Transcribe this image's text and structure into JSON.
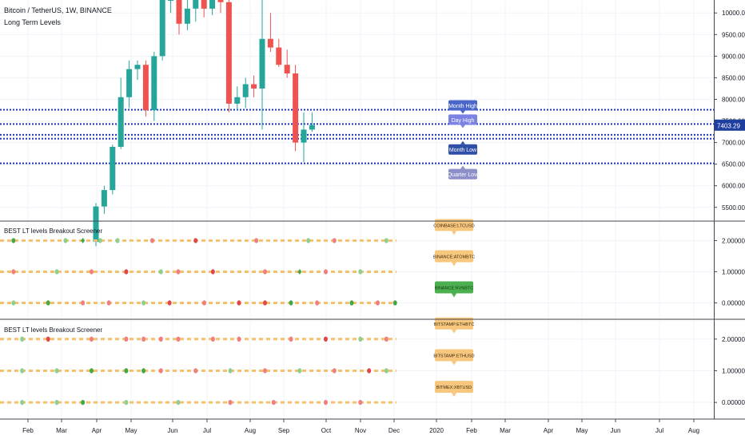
{
  "header": {
    "symbol_line": "Bitcoin / TetherUS, 1W, BINANCE",
    "indicator_name": "Long Term Levels"
  },
  "colors": {
    "bull": "#26a69a",
    "bear": "#ef5350",
    "level_line": "#1f35b8",
    "tag_month_high": "#4a66c9",
    "tag_day_high": "#7b82e3",
    "tag_month_low": "#2f4fa8",
    "tag_quarter_low": "#8c8fc8",
    "price_tag": "#1e3fa0",
    "dash_orange": "#f5c26b",
    "pane_green": "#45a845",
    "pane_red": "#e04848",
    "pane_green_light": "#8fcf8f",
    "pane_red_light": "#f08080",
    "label_orange": "#f8c77e",
    "label_green": "#4caf50"
  },
  "chart_data": [
    {
      "type": "candlestick",
      "title": "Bitcoin / TetherUS, 1W, BINANCE",
      "ylabel": "",
      "ylim": [
        5200,
        10300
      ],
      "y_ticks": [
        "10000.00",
        "9500.00",
        "9000.00",
        "8500.00",
        "8000.00",
        "7500.00",
        "7000.00",
        "6500.00",
        "6000.00",
        "5500.00"
      ],
      "y_tick_values": [
        10000,
        9500,
        9000,
        8500,
        8000,
        7500,
        7000,
        6500,
        6000,
        5500
      ],
      "last_price": 7403.29,
      "last_price_label": "7403.29",
      "candles": [
        {
          "o": 4700,
          "h": 5600,
          "l": 4600,
          "c": 5520
        },
        {
          "o": 5520,
          "h": 6000,
          "l": 5350,
          "c": 5900
        },
        {
          "o": 5900,
          "h": 6950,
          "l": 5800,
          "c": 6900
        },
        {
          "o": 6900,
          "h": 8500,
          "l": 6850,
          "c": 8050
        },
        {
          "o": 8050,
          "h": 8900,
          "l": 7800,
          "c": 8700
        },
        {
          "o": 8700,
          "h": 8900,
          "l": 8450,
          "c": 8800
        },
        {
          "o": 8800,
          "h": 8900,
          "l": 7600,
          "c": 7750
        },
        {
          "o": 7750,
          "h": 9100,
          "l": 7500,
          "c": 9000
        },
        {
          "o": 9000,
          "h": 10300,
          "l": 8900,
          "c": 10300
        },
        {
          "o": 10300,
          "h": 10300,
          "l": 10000,
          "c": 10300
        },
        {
          "o": 10300,
          "h": 10300,
          "l": 9500,
          "c": 9750
        },
        {
          "o": 9750,
          "h": 10300,
          "l": 9600,
          "c": 10100
        },
        {
          "o": 10100,
          "h": 10300,
          "l": 9800,
          "c": 10300
        },
        {
          "o": 10300,
          "h": 10300,
          "l": 9900,
          "c": 10100
        },
        {
          "o": 10100,
          "h": 10300,
          "l": 9950,
          "c": 10300
        },
        {
          "o": 10300,
          "h": 10300,
          "l": 10000,
          "c": 10250
        },
        {
          "o": 10250,
          "h": 10300,
          "l": 7700,
          "c": 7900
        },
        {
          "o": 7900,
          "h": 8300,
          "l": 7750,
          "c": 8050
        },
        {
          "o": 8050,
          "h": 8500,
          "l": 7800,
          "c": 8350
        },
        {
          "o": 8350,
          "h": 8550,
          "l": 8050,
          "c": 8250
        },
        {
          "o": 8250,
          "h": 10300,
          "l": 7300,
          "c": 9400
        },
        {
          "o": 9400,
          "h": 10000,
          "l": 9100,
          "c": 9200
        },
        {
          "o": 9200,
          "h": 9400,
          "l": 8750,
          "c": 8800
        },
        {
          "o": 8800,
          "h": 9150,
          "l": 8500,
          "c": 8600
        },
        {
          "o": 8600,
          "h": 8800,
          "l": 6800,
          "c": 7000
        },
        {
          "o": 7000,
          "h": 7700,
          "l": 6550,
          "c": 7300
        },
        {
          "o": 7300,
          "h": 7700,
          "l": 7250,
          "c": 7403
        }
      ],
      "levels": [
        {
          "name": "Month High",
          "value": 7760
        },
        {
          "name": "Day High",
          "value": 7430
        },
        {
          "name": "",
          "value": 7180
        },
        {
          "name": "Month Low",
          "value": 7090
        },
        {
          "name": "Quarter Low",
          "value": 6520
        }
      ],
      "level_tags": [
        "Month High",
        "Day High",
        "Month Low",
        "Quarter Low"
      ]
    },
    {
      "type": "scatter",
      "title": "BEST LT levels Breakout Screener",
      "ylim": [
        -0.5,
        2.6
      ],
      "y_ticks": [
        "2.000000",
        "1.000000",
        "0.000000"
      ],
      "y_tick_values": [
        2,
        1,
        0
      ],
      "series": [
        {
          "name": "COINBASE:LTCUSD",
          "value": 2,
          "label_style": "orange",
          "marks": [
            {
              "i": 1,
              "k": "g"
            },
            {
              "i": 7,
              "k": "gl"
            },
            {
              "i": 9,
              "k": "gd"
            },
            {
              "i": 11,
              "k": "gl"
            },
            {
              "i": 13,
              "k": "gl"
            },
            {
              "i": 17,
              "k": "rl"
            },
            {
              "i": 22,
              "k": "r"
            },
            {
              "i": 29,
              "k": "rl"
            },
            {
              "i": 35,
              "k": "gl"
            },
            {
              "i": 38,
              "k": "rl"
            },
            {
              "i": 44,
              "k": "gl"
            }
          ]
        },
        {
          "name": "BINANCE:ATOMBTC",
          "value": 1,
          "label_style": "orange",
          "marks": [
            {
              "i": 1,
              "k": "rl"
            },
            {
              "i": 6,
              "k": "gl"
            },
            {
              "i": 10,
              "k": "rl"
            },
            {
              "i": 14,
              "k": "r"
            },
            {
              "i": 18,
              "k": "gl"
            },
            {
              "i": 20,
              "k": "rl"
            },
            {
              "i": 24,
              "k": "r"
            },
            {
              "i": 30,
              "k": "rl"
            },
            {
              "i": 34,
              "k": "gd"
            },
            {
              "i": 37,
              "k": "rl"
            },
            {
              "i": 41,
              "k": "gl"
            }
          ]
        },
        {
          "name": "BINANCE:RVNBTC",
          "value": 0,
          "label_style": "green",
          "marks": [
            {
              "i": 1,
              "k": "gl"
            },
            {
              "i": 5,
              "k": "g"
            },
            {
              "i": 9,
              "k": "rl"
            },
            {
              "i": 12,
              "k": "rl"
            },
            {
              "i": 16,
              "k": "gl"
            },
            {
              "i": 19,
              "k": "r"
            },
            {
              "i": 23,
              "k": "rl"
            },
            {
              "i": 27,
              "k": "r"
            },
            {
              "i": 30,
              "k": "r"
            },
            {
              "i": 33,
              "k": "g"
            },
            {
              "i": 36,
              "k": "rl"
            },
            {
              "i": 40,
              "k": "g"
            },
            {
              "i": 43,
              "k": "rl"
            },
            {
              "i": 45,
              "k": "g"
            }
          ]
        }
      ]
    },
    {
      "type": "scatter",
      "title": "BEST LT levels Breakout Screener",
      "ylim": [
        -0.5,
        2.6
      ],
      "y_ticks": [
        "2.000000",
        "1.000000",
        "0.000000"
      ],
      "y_tick_values": [
        2,
        1,
        0
      ],
      "series": [
        {
          "name": "BITSTAMP:ETHBTC",
          "value": 2,
          "label_style": "orange",
          "marks": [
            {
              "i": 2,
              "k": "gl"
            },
            {
              "i": 5,
              "k": "r"
            },
            {
              "i": 10,
              "k": "rl"
            },
            {
              "i": 14,
              "k": "rl"
            },
            {
              "i": 16,
              "k": "rl"
            },
            {
              "i": 18,
              "k": "rl"
            },
            {
              "i": 20,
              "k": "rl"
            },
            {
              "i": 24,
              "k": "rl"
            },
            {
              "i": 27,
              "k": "rl"
            },
            {
              "i": 33,
              "k": "rl"
            },
            {
              "i": 37,
              "k": "r"
            },
            {
              "i": 41,
              "k": "gl"
            },
            {
              "i": 44,
              "k": "rl"
            }
          ]
        },
        {
          "name": "BITSTAMP:ETHUSD",
          "value": 1,
          "label_style": "orange",
          "marks": [
            {
              "i": 2,
              "k": "gl"
            },
            {
              "i": 6,
              "k": "gl"
            },
            {
              "i": 10,
              "k": "g"
            },
            {
              "i": 14,
              "k": "g"
            },
            {
              "i": 16,
              "k": "g"
            },
            {
              "i": 18,
              "k": "rl"
            },
            {
              "i": 22,
              "k": "rl"
            },
            {
              "i": 26,
              "k": "gl"
            },
            {
              "i": 30,
              "k": "rl"
            },
            {
              "i": 34,
              "k": "gl"
            },
            {
              "i": 38,
              "k": "rl"
            },
            {
              "i": 42,
              "k": "r"
            },
            {
              "i": 44,
              "k": "gl"
            }
          ]
        },
        {
          "name": "BITMEX:XBTUSD",
          "value": 0,
          "label_style": "orange",
          "marks": [
            {
              "i": 2,
              "k": "gl"
            },
            {
              "i": 6,
              "k": "gl"
            },
            {
              "i": 9,
              "k": "g"
            },
            {
              "i": 14,
              "k": "gl"
            },
            {
              "i": 20,
              "k": "gl"
            },
            {
              "i": 26,
              "k": "rl"
            },
            {
              "i": 31,
              "k": "rl"
            },
            {
              "i": 37,
              "k": "rl"
            },
            {
              "i": 41,
              "k": "rl"
            }
          ]
        }
      ]
    }
  ],
  "time_axis": {
    "labels": [
      "Feb",
      "Mar",
      "Apr",
      "May",
      "Jun",
      "Jul",
      "Aug",
      "Sep",
      "Oct",
      "Nov",
      "Dec",
      "2020",
      "Feb",
      "Mar",
      "Apr",
      "May",
      "Jun",
      "Jul",
      "Aug"
    ]
  }
}
